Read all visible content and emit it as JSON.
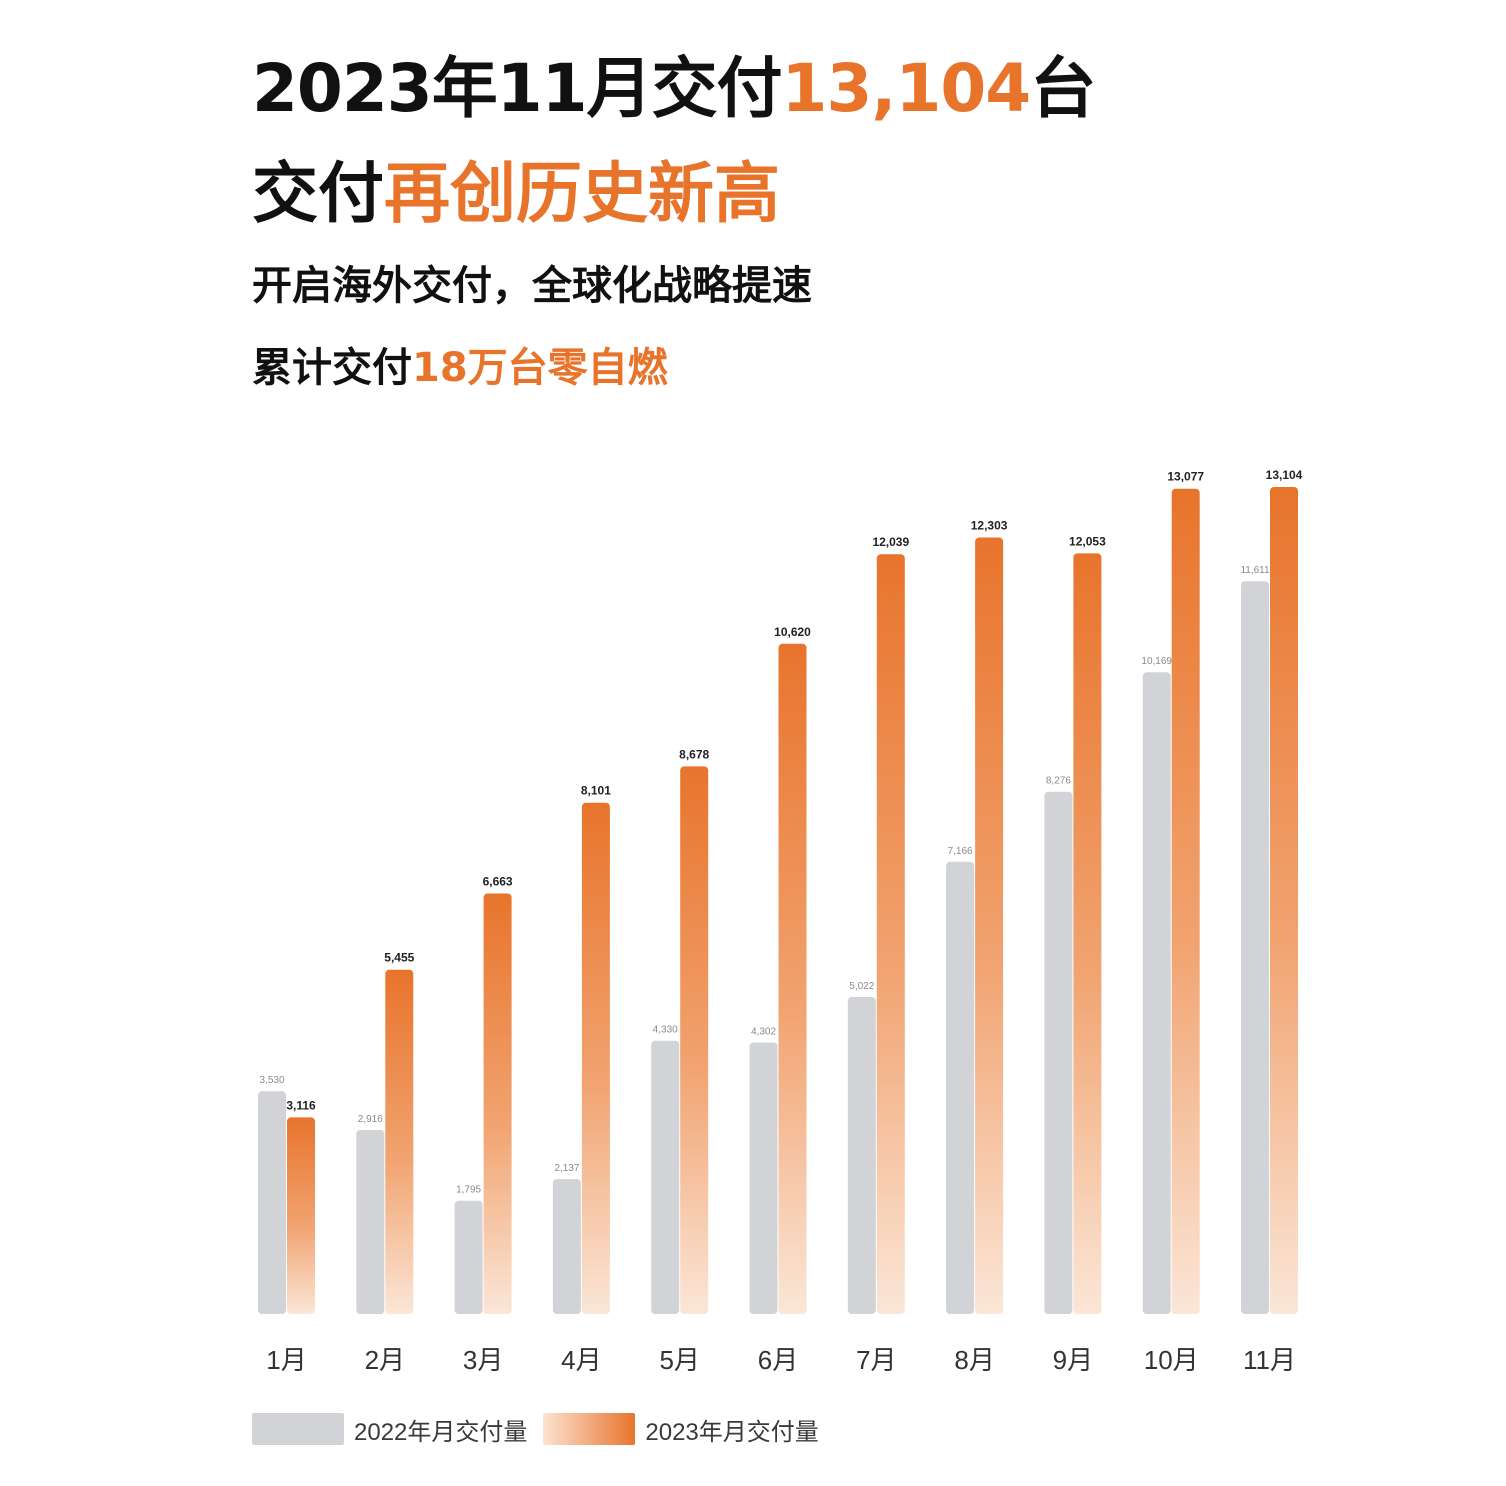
{
  "header": {
    "title_line1_prefix": "2023年11月交付",
    "title_line1_highlight": "13,104",
    "title_line1_suffix": "台",
    "title_line2_prefix": "交付",
    "title_line2_highlight": "再创历史新高",
    "subtitle_line1": "开启海外交付，全球化战略提速",
    "subtitle_line2_prefix": "累计交付",
    "subtitle_line2_highlight": "18万台零自燃"
  },
  "colors": {
    "accent": "#e8742c",
    "series_2022": "#d2d3d6",
    "series_2023_top": "#e8742c",
    "series_2023_bottom": "#fbe3d2"
  },
  "chart_data": {
    "type": "bar",
    "categories": [
      "1月",
      "2月",
      "3月",
      "4月",
      "5月",
      "6月",
      "7月",
      "8月",
      "9月",
      "10月",
      "11月"
    ],
    "series": [
      {
        "name": "2022年月交付量",
        "values": [
          3530,
          2916,
          1795,
          2137,
          4330,
          4302,
          5022,
          7166,
          8276,
          10169,
          11611
        ],
        "labels": [
          "3,530",
          "2,916",
          "1,795",
          "2,137",
          "4,330",
          "4,302",
          "5,022",
          "7,166",
          "8,276",
          "10,169",
          "11,611"
        ]
      },
      {
        "name": "2023年月交付量",
        "values": [
          3116,
          5455,
          6663,
          8101,
          8678,
          10620,
          12039,
          12303,
          12053,
          13077,
          13104
        ],
        "labels": [
          "3,116",
          "5,455",
          "6,663",
          "8,101",
          "8,678",
          "10,620",
          "12,039",
          "12,303",
          "12,053",
          "13,077",
          "13,104"
        ]
      }
    ],
    "ylim": [
      0,
      13104
    ],
    "grid": false,
    "legend_position": "bottom-left"
  }
}
